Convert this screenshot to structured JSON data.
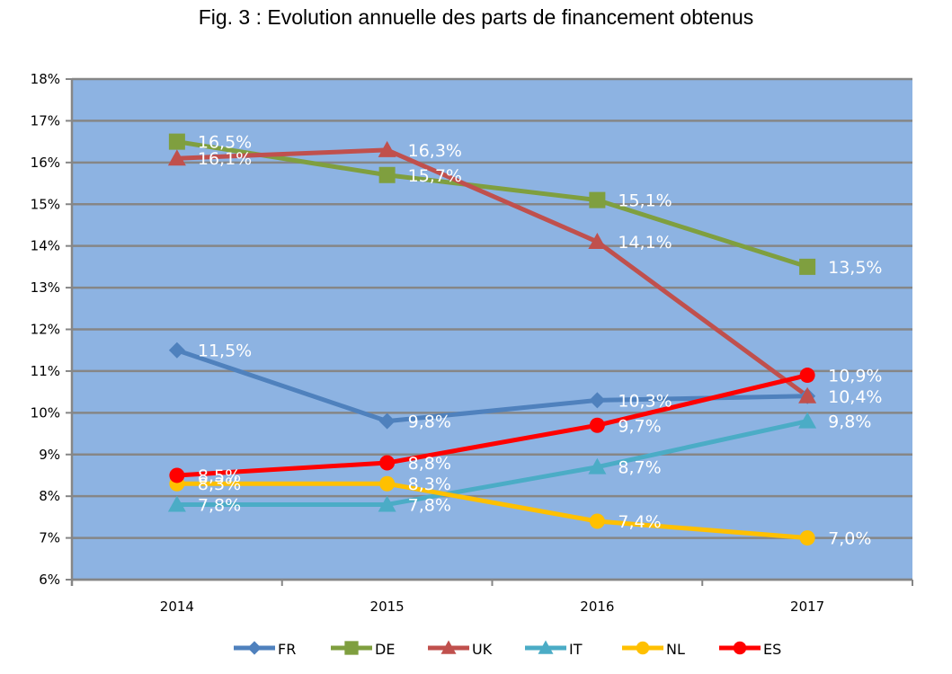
{
  "chart_data": {
    "type": "line",
    "title": "Fig. 3 : Evolution annuelle des parts de financement obtenus",
    "xlabel": "",
    "ylabel": "",
    "categories": [
      "2014",
      "2015",
      "2016",
      "2017"
    ],
    "ylim": [
      6,
      18
    ],
    "yticks": [
      "6%",
      "7%",
      "8%",
      "9%",
      "10%",
      "11%",
      "12%",
      "13%",
      "14%",
      "15%",
      "16%",
      "17%",
      "18%"
    ],
    "grid": true,
    "legend_position": "bottom",
    "plot_background": "#8db3e2",
    "series": [
      {
        "name": "FR",
        "color": "#4f81bd",
        "marker": "diamond",
        "values": [
          11.5,
          9.8,
          10.3,
          10.4
        ],
        "labels": [
          "11,5%",
          "9,8%",
          "10,3%",
          "10,4%"
        ]
      },
      {
        "name": "DE",
        "color": "#7f9f3f",
        "marker": "square",
        "values": [
          16.5,
          15.7,
          15.1,
          13.5
        ],
        "labels": [
          "16,5%",
          "15,7%",
          "15,1%",
          "13,5%"
        ]
      },
      {
        "name": "UK",
        "color": "#c0504d",
        "marker": "triangle",
        "values": [
          16.1,
          16.3,
          14.1,
          10.4
        ],
        "labels": [
          "16,1%",
          "16,3%",
          "14,1%",
          ""
        ]
      },
      {
        "name": "IT",
        "color": "#4bacc6",
        "marker": "triangle",
        "values": [
          7.8,
          7.8,
          8.7,
          9.8
        ],
        "labels": [
          "7,8%",
          "7,8%",
          "8,7%",
          "9,8%"
        ]
      },
      {
        "name": "NL",
        "color": "#ffc000",
        "marker": "circle",
        "values": [
          8.3,
          8.3,
          7.4,
          7.0
        ],
        "labels": [
          "8,3%",
          "8,3%",
          "7,4%",
          "7,0%"
        ]
      },
      {
        "name": "ES",
        "color": "#ff0000",
        "marker": "circle",
        "values": [
          8.5,
          8.8,
          9.7,
          10.9
        ],
        "labels": [
          "8,5%",
          "8,8%",
          "9,7%",
          "10,9%"
        ]
      }
    ]
  }
}
